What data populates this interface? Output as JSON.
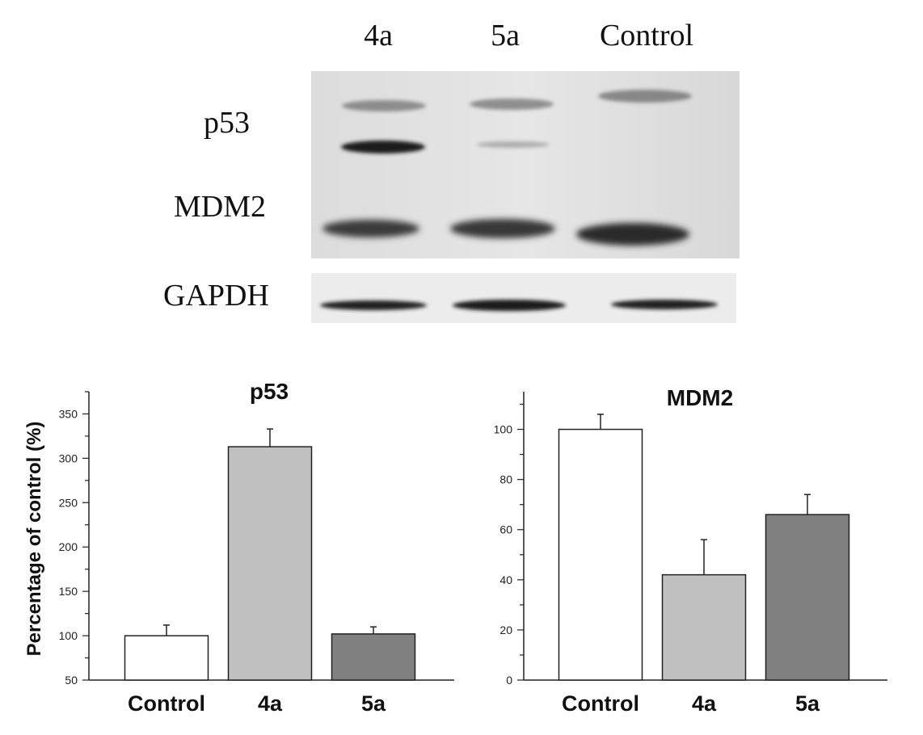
{
  "blot": {
    "lanes": [
      "4a",
      "5a",
      "Control"
    ],
    "bands": [
      "p53",
      "MDM2",
      "GAPDH"
    ]
  },
  "chart_data": [
    {
      "type": "bar",
      "title": "p53",
      "ylabel": "Percentage of control (%)",
      "xlabel": "",
      "categories": [
        "Control",
        "4a",
        "5a"
      ],
      "values": [
        100,
        313,
        102
      ],
      "errors": [
        12,
        20,
        8
      ],
      "ylim": [
        50,
        375
      ],
      "yticks": [
        50,
        100,
        150,
        200,
        250,
        300,
        350
      ],
      "bar_colors": [
        "#ffffff",
        "#c0c0c0",
        "#808080"
      ],
      "grid": false
    },
    {
      "type": "bar",
      "title": "MDM2",
      "ylabel": "",
      "xlabel": "",
      "categories": [
        "Control",
        "4a",
        "5a"
      ],
      "values": [
        100,
        42,
        66
      ],
      "errors": [
        6,
        14,
        8
      ],
      "ylim": [
        0,
        115
      ],
      "yticks": [
        0,
        20,
        40,
        60,
        80,
        100
      ],
      "bar_colors": [
        "#ffffff",
        "#c0c0c0",
        "#808080"
      ],
      "grid": false
    }
  ]
}
